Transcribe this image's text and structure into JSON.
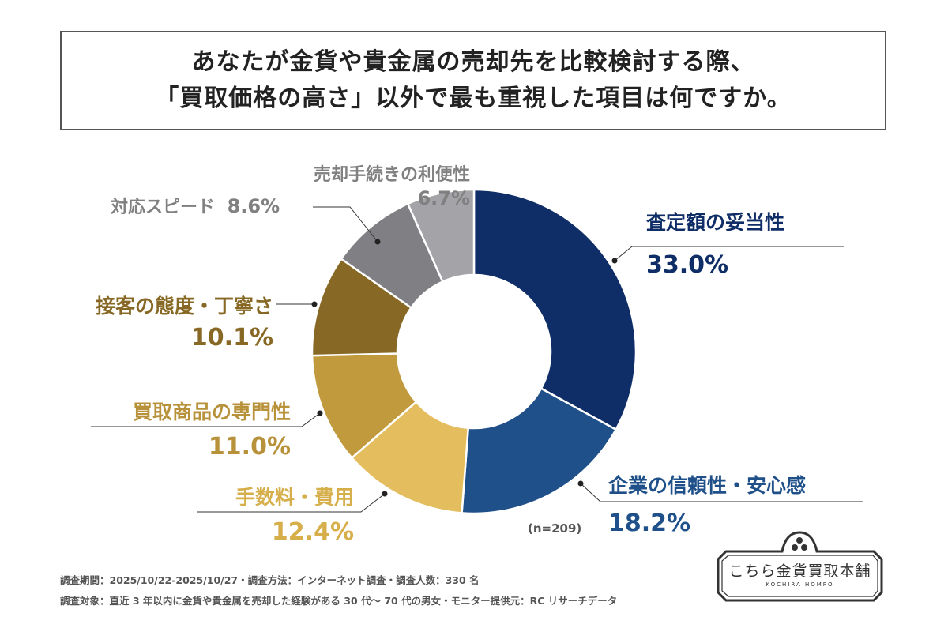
{
  "title": {
    "line1": "あなたが金貨や貴金属の売却先を比較検討する際、",
    "line2": "「買取価格の高さ」以外で最も重視した項目は何ですか。"
  },
  "chart_data": {
    "type": "pie",
    "variant": "donut",
    "start": "top, clockwise",
    "categories": [
      "査定額の妥当性",
      "企業の信頼性・安心感",
      "手数料・費用",
      "買取商品の専門性",
      "接客の態度・丁寧さ",
      "対応スピード",
      "売却手続きの利便性"
    ],
    "values": [
      33.0,
      18.2,
      12.4,
      11.0,
      10.1,
      8.6,
      6.7
    ],
    "value_labels": [
      "33.0%",
      "18.2%",
      "12.4%",
      "11.0%",
      "10.1%",
      "8.6%",
      "6.7%"
    ],
    "colors": [
      "#0f2d66",
      "#1f5089",
      "#e3bd5e",
      "#c09a3c",
      "#876824",
      "#807f84",
      "#a4a3a7"
    ],
    "label_colors": [
      "#0f2d66",
      "#1f5089",
      "#d6ae4a",
      "#b8923a",
      "#876824",
      "#808080",
      "#808080"
    ],
    "sample_note": "(n=209)"
  },
  "footer": {
    "line1": "調査期間：2025/10/22-2025/10/27・調査方法：インターネット調査・調査人数：330 名",
    "line2": "調査対象：直近 3 年以内に金貨や貴金属を売却した経験がある 30 代～ 70 代の男女・モニター提供元：RC リサーチデータ"
  },
  "logo": {
    "name": "こちら金貨買取本舗",
    "sub": "KOCHIRA HOMPO"
  }
}
